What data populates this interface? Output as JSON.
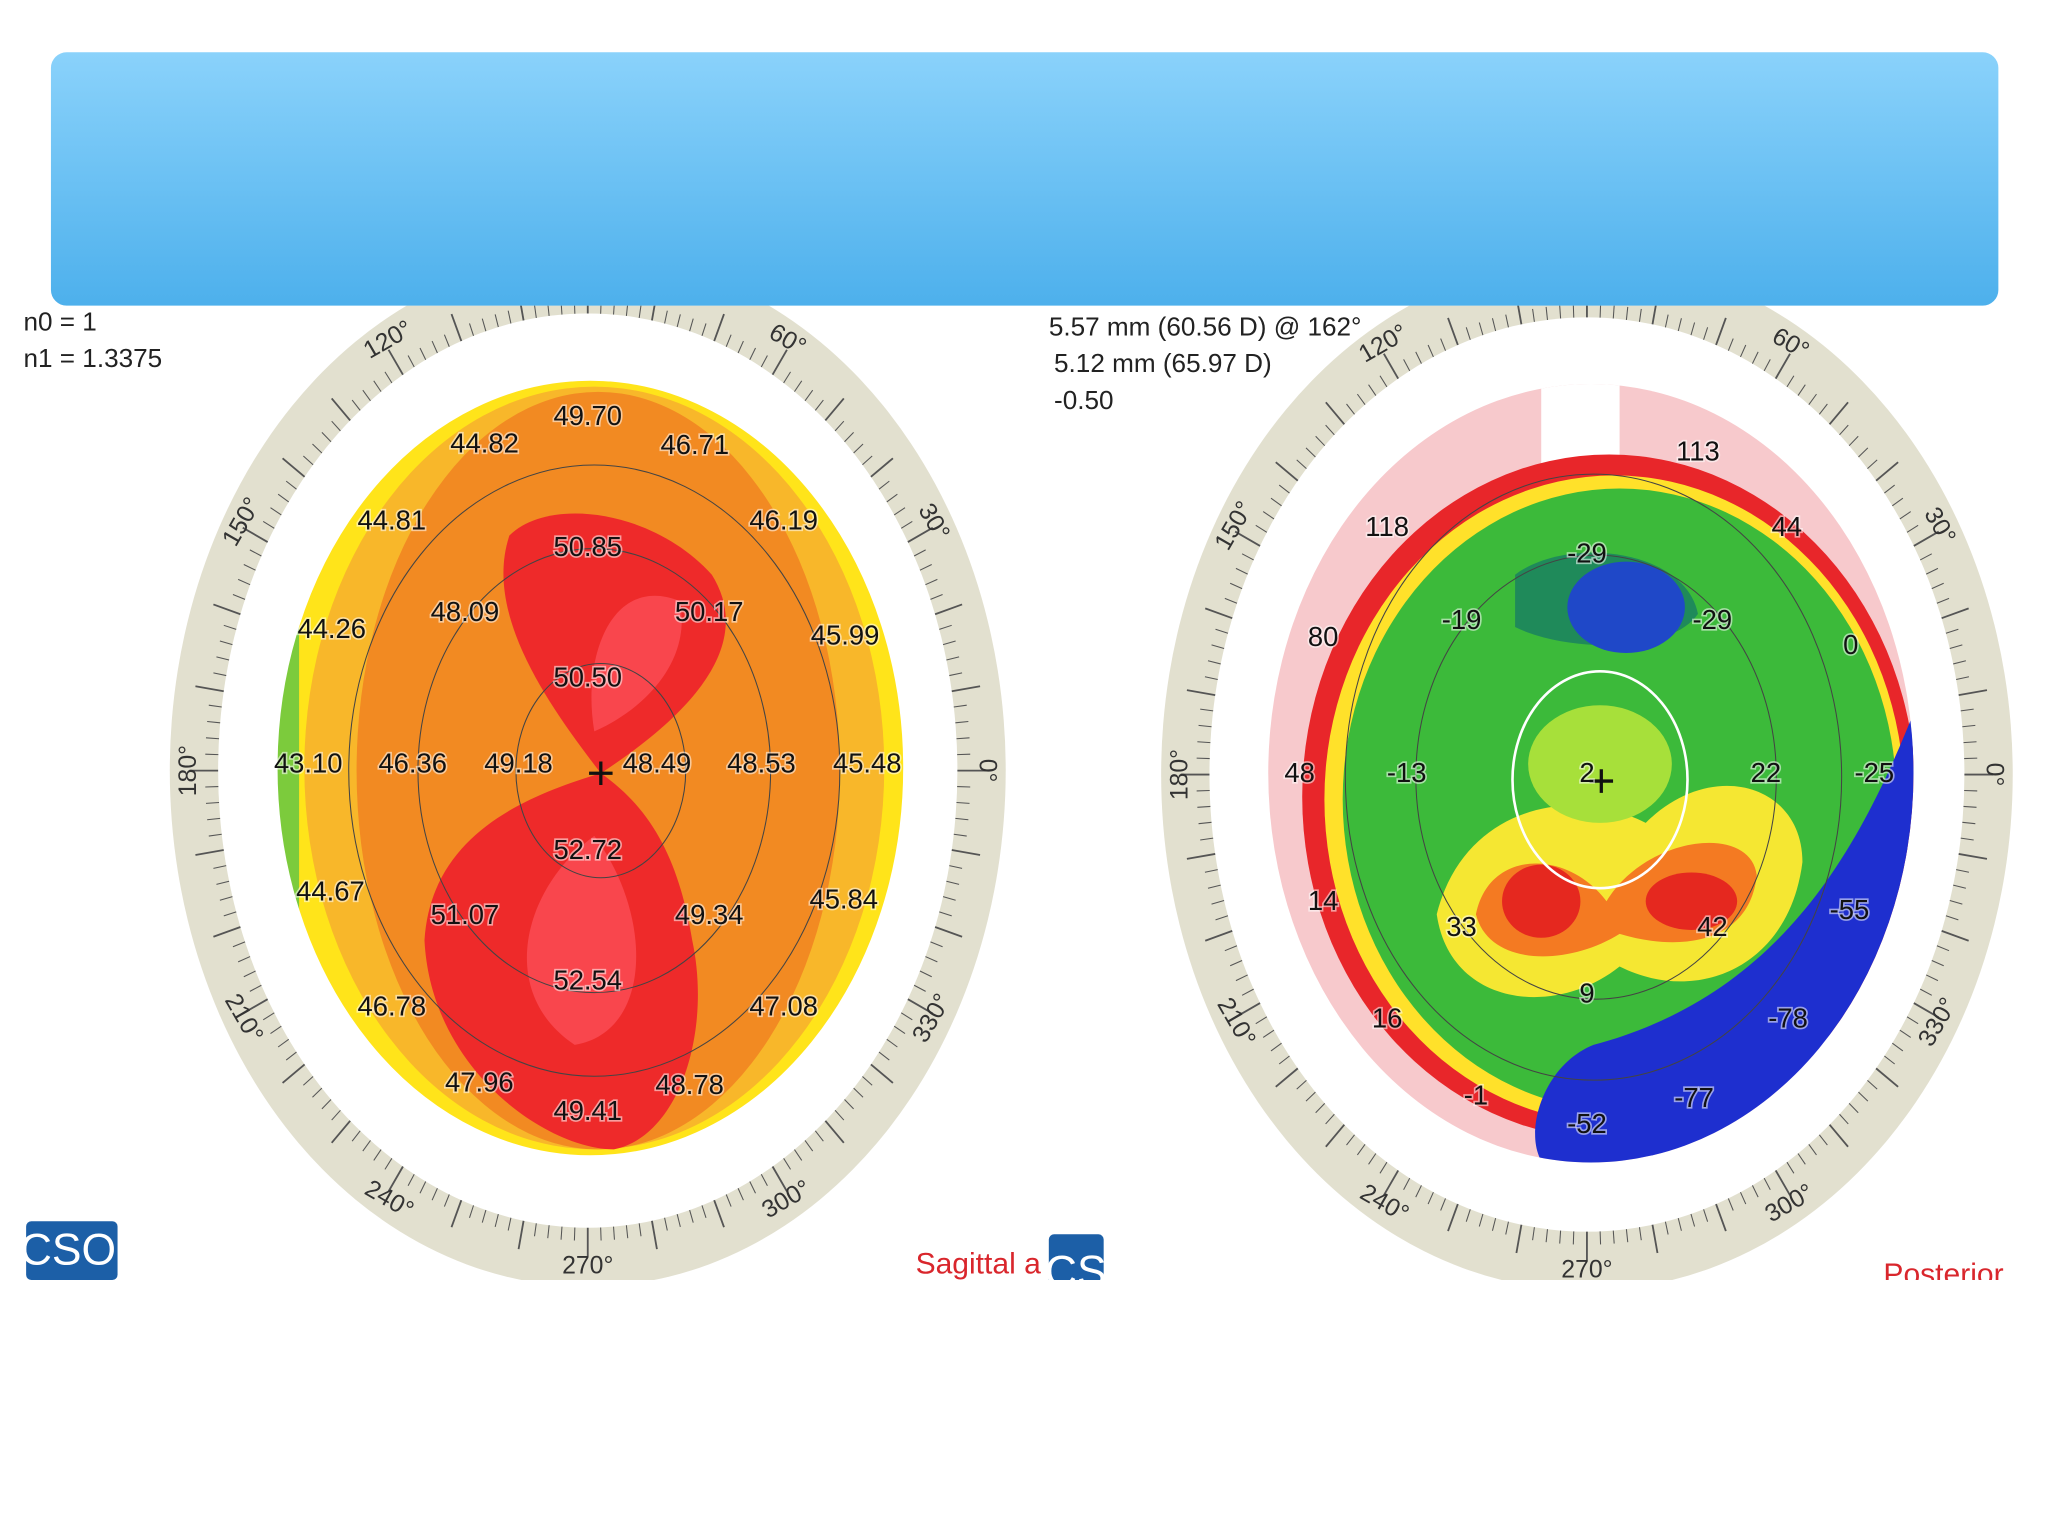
{
  "left_map": {
    "parameters": [
      "n0 = 1",
      "n1 = 1.3375"
    ],
    "values": [
      "49.70",
      "44.82",
      "46.71",
      "44.81",
      "46.19",
      "50.85",
      "48.09",
      "50.17",
      "44.26",
      "45.99",
      "50.50",
      "43.10",
      "46.36",
      "49.18",
      "48.49",
      "48.53",
      "45.48",
      "52.72",
      "44.67",
      "45.84",
      "51.07",
      "49.34",
      "52.54",
      "46.78",
      "47.08",
      "47.96",
      "48.78",
      "49.41"
    ],
    "angle_labels": [
      "0°",
      "30°",
      "60°",
      "120°",
      "150°",
      "180°",
      "210°",
      "240°",
      "270°",
      "300°",
      "330°"
    ],
    "logo": "CSO",
    "caption": "Sagittal a"
  },
  "right_map": {
    "parameters": [
      "5.57 mm (60.56 D) @ 162°",
      "5.12 mm (65.97 D)",
      "-0.50"
    ],
    "values": [
      "113",
      "118",
      "44",
      "-29",
      "-19",
      "-29",
      "80",
      "0",
      "48",
      "-13",
      "2",
      "22",
      "-25",
      "14",
      "33",
      "42",
      "-55",
      "9",
      "16",
      "-78",
      "-1",
      "-77",
      "-52"
    ],
    "angle_labels": [
      "0°",
      "30°",
      "60°",
      "120°",
      "150°",
      "180°",
      "210°",
      "240°",
      "270°",
      "300°",
      "330°"
    ],
    "logo": "CSO",
    "caption": "Posterior"
  }
}
